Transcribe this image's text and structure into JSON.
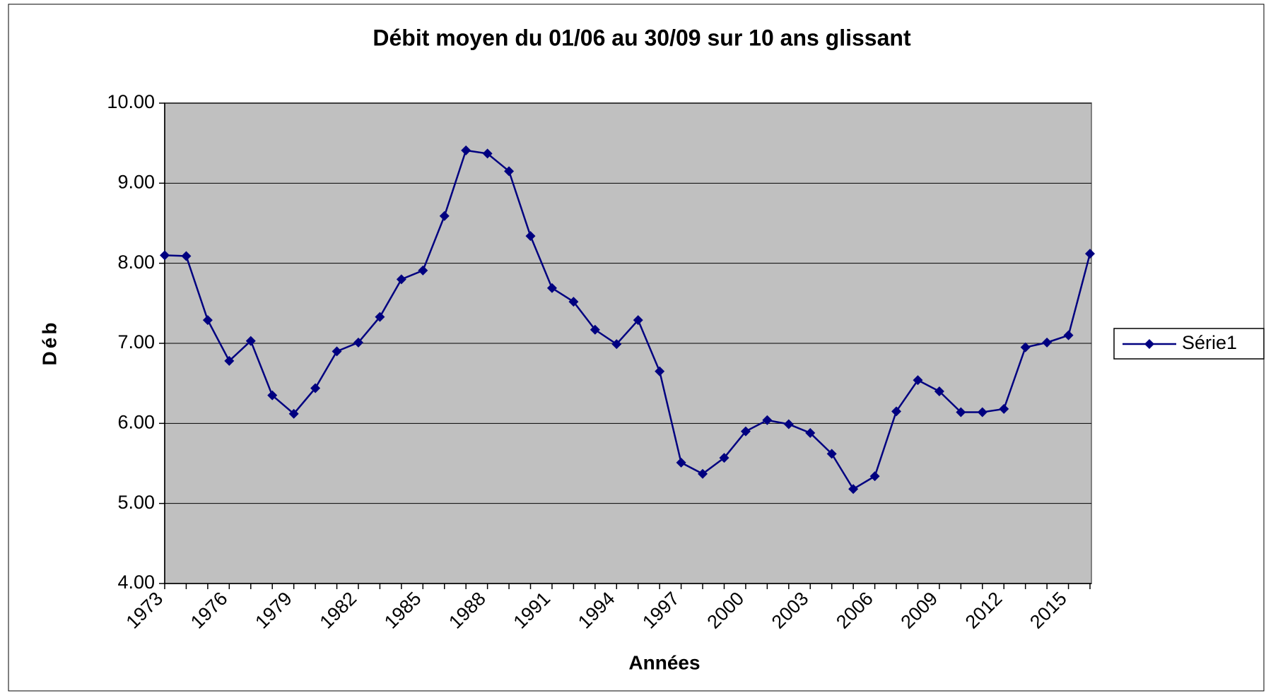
{
  "chart_data": {
    "type": "line",
    "title": "Débit moyen  du 01/06 au 30/09 sur 10 ans glissant",
    "x_label": "Années",
    "y_label": "Déb",
    "categories": [
      "1973",
      null,
      null,
      "1976",
      null,
      null,
      "1979",
      null,
      null,
      "1982",
      null,
      null,
      "1985",
      null,
      null,
      "1988",
      null,
      null,
      "1991",
      null,
      null,
      "1994",
      null,
      null,
      "1997",
      null,
      null,
      "2000",
      null,
      null,
      "2003",
      null,
      null,
      "2006",
      null,
      null,
      "2009",
      null,
      null,
      "2012",
      null,
      null,
      "2015",
      null
    ],
    "series": [
      {
        "name": "Série1",
        "color": "#000080",
        "values": [
          8.1,
          8.09,
          7.29,
          6.78,
          7.03,
          6.35,
          6.12,
          6.44,
          6.9,
          7.01,
          7.33,
          7.8,
          7.91,
          8.59,
          9.41,
          9.37,
          9.15,
          8.34,
          7.69,
          7.52,
          7.17,
          6.99,
          7.29,
          6.65,
          5.51,
          5.37,
          5.57,
          5.9,
          6.04,
          5.99,
          5.88,
          5.62,
          5.18,
          5.34,
          6.15,
          6.54,
          6.4,
          6.14,
          6.14,
          6.18,
          6.95,
          7.01,
          7.1,
          8.12
        ]
      }
    ],
    "ylim": [
      4,
      10
    ],
    "yticks": [
      {
        "value": 4,
        "label": "4.00"
      },
      {
        "value": 5,
        "label": "5.00"
      },
      {
        "value": 6,
        "label": "6.00"
      },
      {
        "value": 7,
        "label": "7.00"
      },
      {
        "value": 8,
        "label": "8.00"
      },
      {
        "value": 9,
        "label": "9.00"
      },
      {
        "value": 10,
        "label": "10.00"
      }
    ],
    "grid": true,
    "plot_background": "#c0c0c0",
    "legend": "right"
  }
}
